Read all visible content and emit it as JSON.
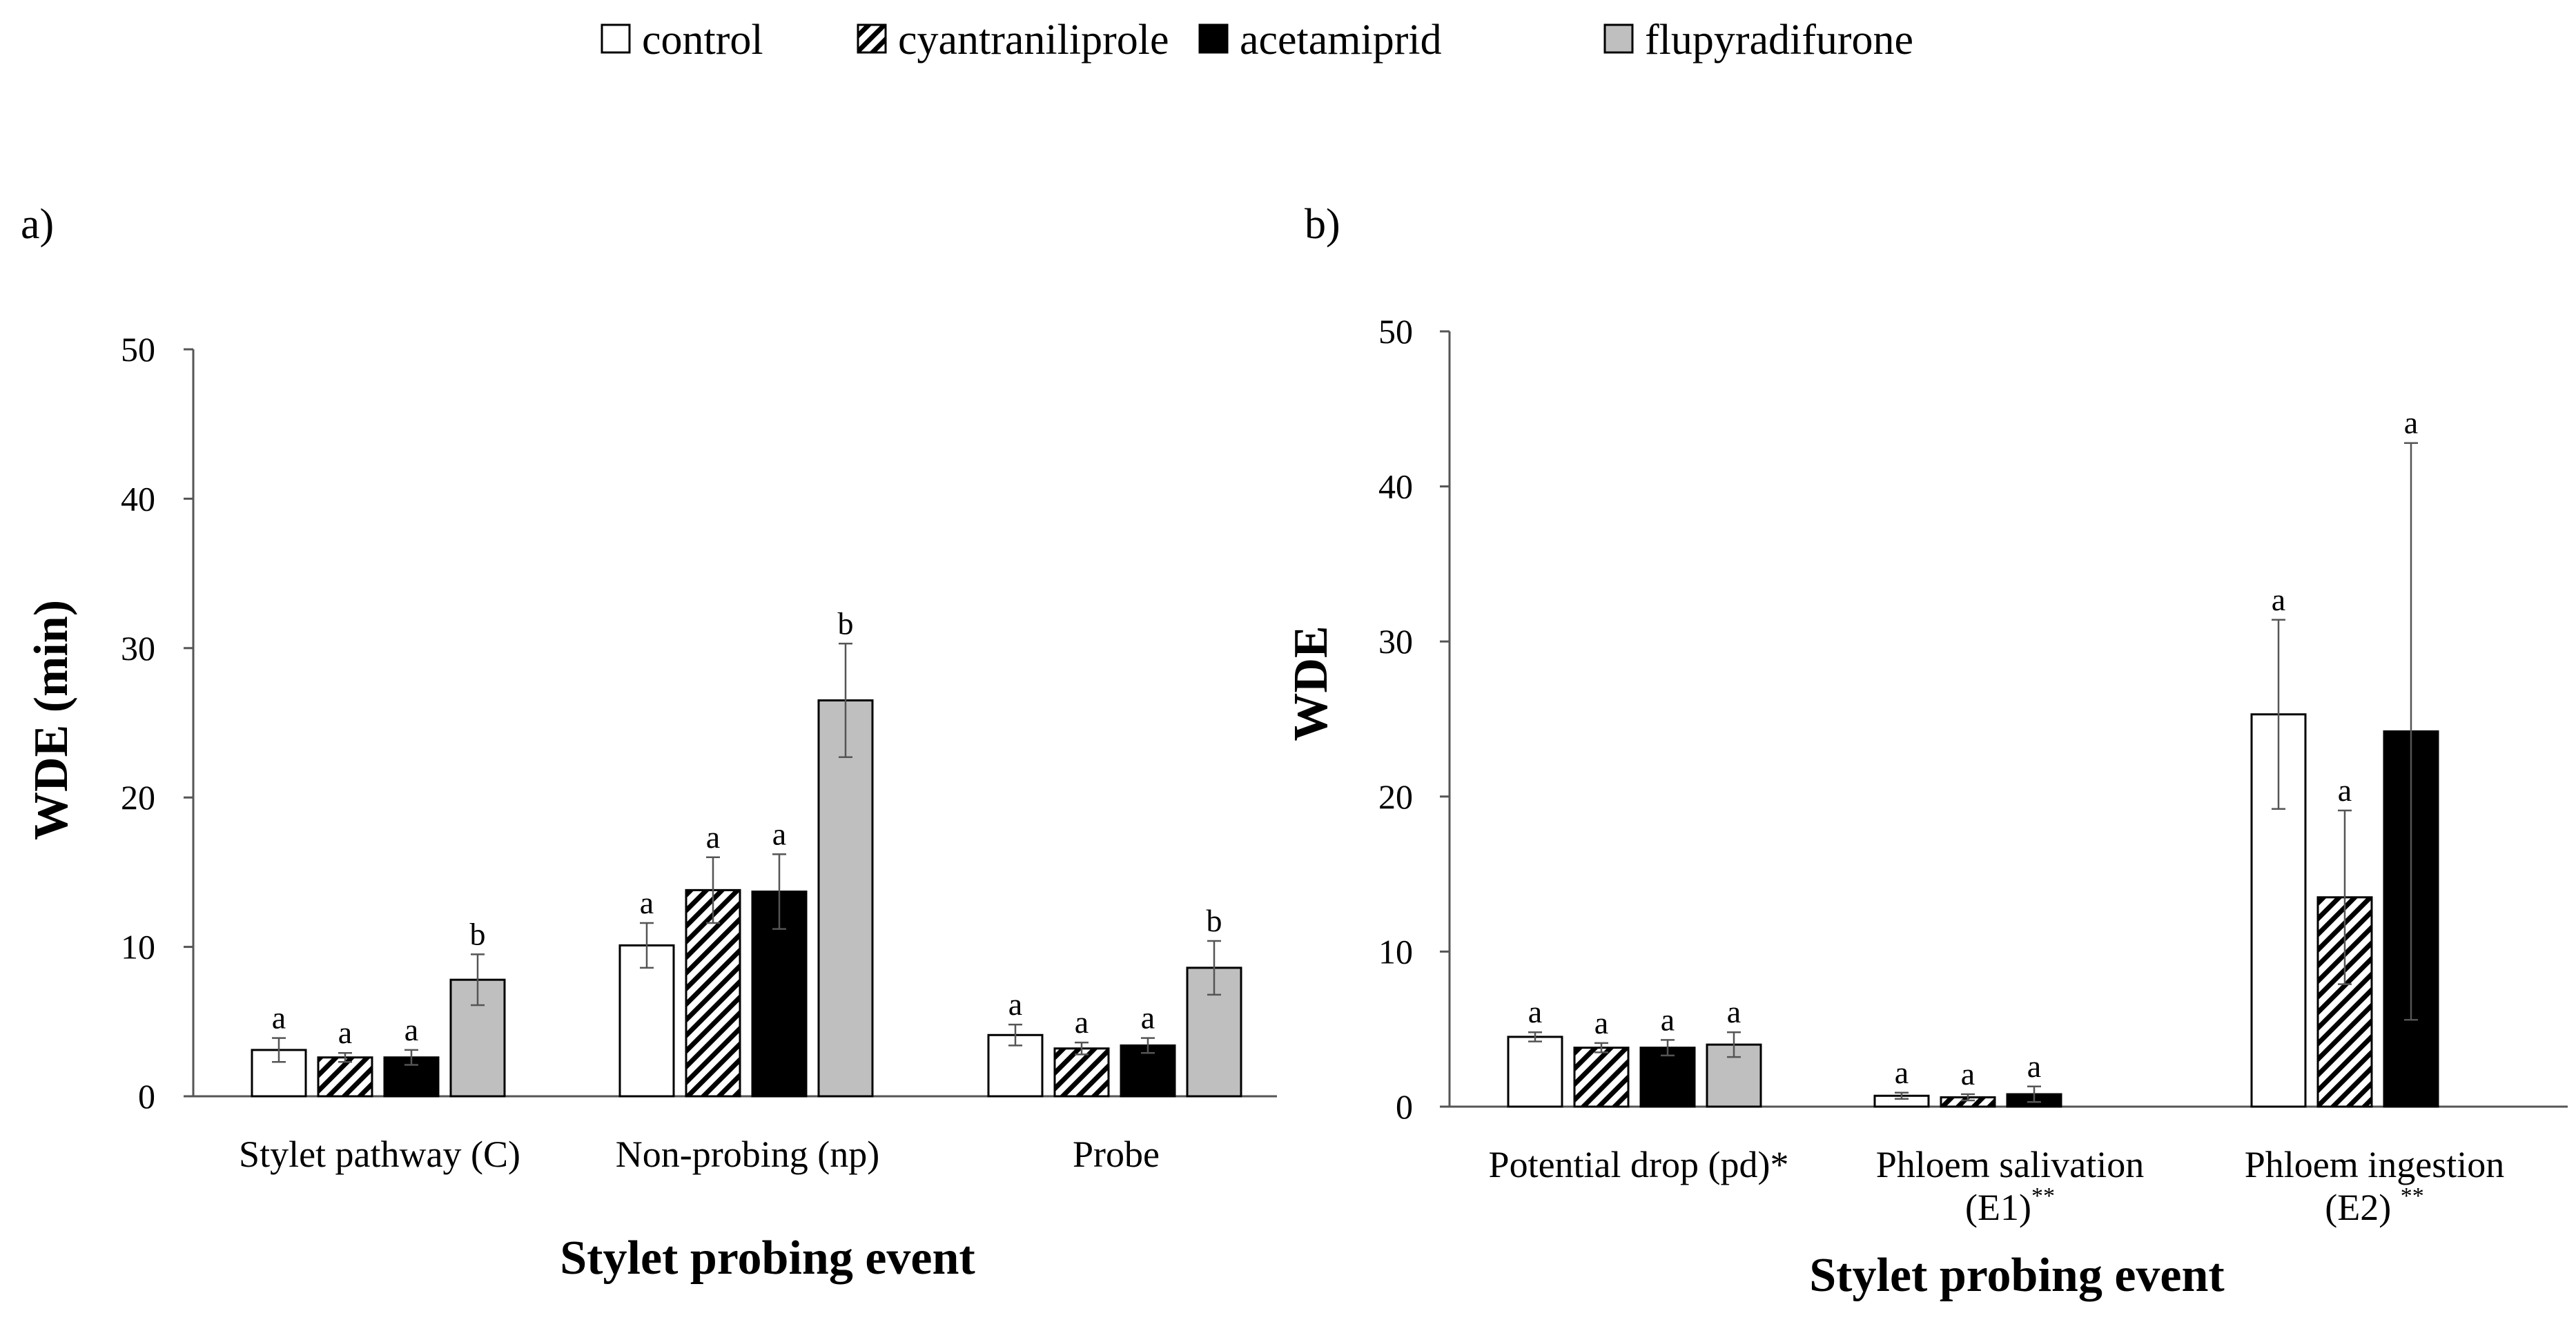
{
  "legend": [
    {
      "key": "control",
      "label": "control",
      "pattern": "white"
    },
    {
      "key": "cyantraniliprole",
      "label": "cyantraniliprole",
      "pattern": "hatch"
    },
    {
      "key": "acetamiprid",
      "label": "acetamiprid",
      "pattern": "black"
    },
    {
      "key": "flupyradifurone",
      "label": "flupyradifurone",
      "pattern": "gray"
    }
  ],
  "colors": {
    "black": "#000000",
    "gray": "#bfbfbf",
    "white": "#ffffff",
    "axis": "#555555",
    "error": "#555555"
  },
  "chart_data": [
    {
      "id": "a",
      "panel_label": "a)",
      "type": "bar",
      "ylabel": "WDE (min)",
      "xlabel": "Stylet probing event",
      "ylim": [
        0,
        50
      ],
      "yticks": [
        0,
        10,
        20,
        30,
        40,
        50
      ],
      "categories": [
        {
          "lines": [
            "Stylet pathway (C)"
          ]
        },
        {
          "lines": [
            "Non-probing (np)"
          ]
        },
        {
          "lines": [
            "Probe"
          ]
        }
      ],
      "series": [
        {
          "key": "control",
          "values": [
            3.1,
            10.1,
            4.1
          ],
          "errors": [
            0.8,
            1.5,
            0.7
          ],
          "letters": [
            "a",
            "a",
            "a"
          ]
        },
        {
          "key": "cyantraniliprole",
          "values": [
            2.6,
            13.8,
            3.2
          ],
          "errors": [
            0.3,
            2.2,
            0.4
          ],
          "letters": [
            "a",
            "a",
            "a"
          ]
        },
        {
          "key": "acetamiprid",
          "values": [
            2.6,
            13.7,
            3.4
          ],
          "errors": [
            0.5,
            2.5,
            0.5
          ],
          "letters": [
            "a",
            "a",
            "a"
          ]
        },
        {
          "key": "flupyradifurone",
          "values": [
            7.8,
            26.5,
            8.6
          ],
          "errors": [
            1.7,
            3.8,
            1.8
          ],
          "letters": [
            "b",
            "b",
            "b"
          ]
        }
      ]
    },
    {
      "id": "b",
      "panel_label": "b)",
      "type": "bar",
      "ylabel": "WDE",
      "xlabel": "Stylet probing event",
      "ylim": [
        0,
        50
      ],
      "yticks": [
        0,
        10,
        20,
        30,
        40,
        50
      ],
      "categories": [
        {
          "lines": [
            "Potential drop (pd)*"
          ],
          "sup": [
            "",
            ""
          ]
        },
        {
          "lines": [
            "Phloem salivation",
            "(E1)"
          ],
          "sup": [
            "",
            "**"
          ]
        },
        {
          "lines": [
            "Phloem ingestion",
            "(E2) "
          ],
          "sup": [
            "",
            "**"
          ]
        }
      ],
      "series": [
        {
          "key": "control",
          "values": [
            4.5,
            0.7,
            25.3
          ],
          "errors": [
            0.3,
            0.2,
            6.1
          ],
          "letters": [
            "a",
            "a",
            "a"
          ]
        },
        {
          "key": "cyantraniliprole",
          "values": [
            3.8,
            0.6,
            13.5
          ],
          "errors": [
            0.3,
            0.2,
            5.6
          ],
          "letters": [
            "a",
            "a",
            "a"
          ]
        },
        {
          "key": "acetamiprid",
          "values": [
            3.8,
            0.8,
            24.2
          ],
          "errors": [
            0.5,
            0.5,
            18.6
          ],
          "letters": [
            "a",
            "a",
            "a"
          ]
        },
        {
          "key": "flupyradifurone",
          "values": [
            4.0,
            null,
            null
          ],
          "errors": [
            0.8,
            null,
            null
          ],
          "letters": [
            "a",
            "",
            ""
          ]
        }
      ]
    }
  ]
}
